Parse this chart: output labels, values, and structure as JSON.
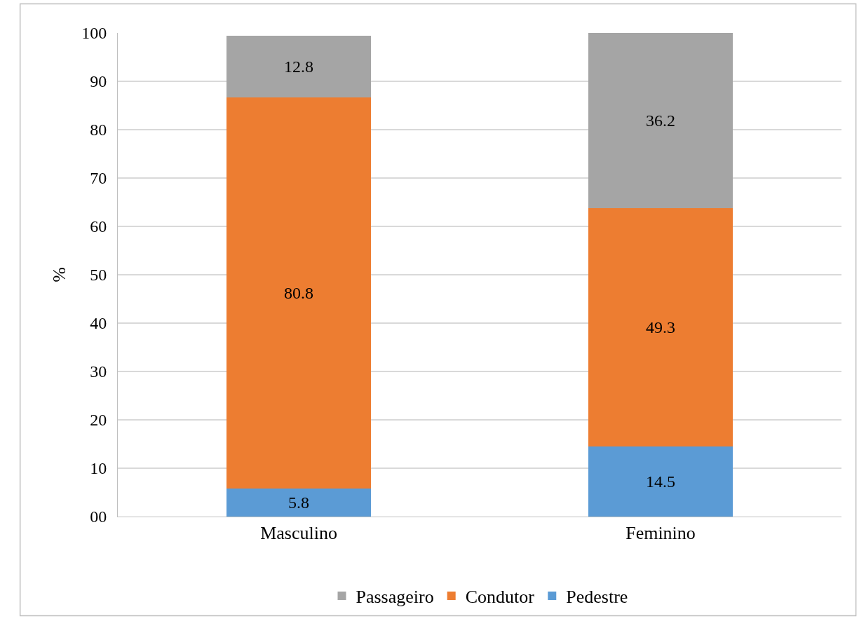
{
  "chart_data": {
    "type": "bar",
    "stacked": true,
    "ylabel": "%",
    "categories": [
      "Masculino",
      "Feminino"
    ],
    "series": [
      {
        "name": "Pedestre",
        "color": "#5b9bd5",
        "values": [
          5.8,
          14.5
        ]
      },
      {
        "name": "Condutor",
        "color": "#ed7d31",
        "values": [
          80.8,
          49.3
        ]
      },
      {
        "name": "Passageiro",
        "color": "#a5a5a5",
        "values": [
          12.8,
          36.2
        ]
      }
    ],
    "ylim": [
      0,
      100
    ],
    "yticks": [
      {
        "value": 0,
        "label": "00"
      },
      10,
      20,
      30,
      40,
      50,
      60,
      70,
      80,
      90,
      100
    ],
    "grid": "y",
    "legend": "bottom",
    "data_labels": true
  }
}
